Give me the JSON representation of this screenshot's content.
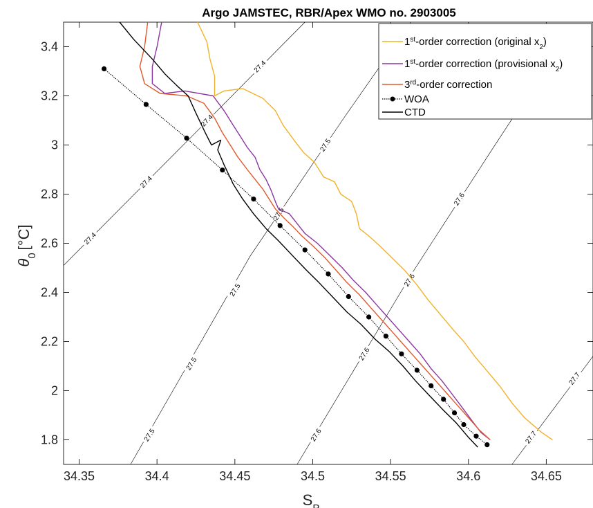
{
  "chart_data": {
    "type": "line",
    "title": "Argo JAMSTEC, RBR/Apex WMO no. 2903005",
    "xlabel": {
      "main": "S",
      "sub": "P"
    },
    "ylabel": {
      "theta": "θ",
      "sub": "0",
      "unit": "[°C]"
    },
    "xlim": [
      34.34,
      34.68
    ],
    "ylim": [
      1.7,
      3.5
    ],
    "xticks": [
      34.35,
      34.4,
      34.45,
      34.5,
      34.55,
      34.6,
      34.65
    ],
    "xtick_labels": [
      "34.35",
      "34.4",
      "34.45",
      "34.5",
      "34.55",
      "34.6",
      "34.65"
    ],
    "yticks": [
      1.8,
      2.0,
      2.2,
      2.4,
      2.6,
      2.8,
      3.0,
      3.2,
      3.4
    ],
    "ytick_labels": [
      "1.8",
      "2",
      "2.2",
      "2.4",
      "2.6",
      "2.8",
      "3",
      "3.2",
      "3.4"
    ],
    "legend": {
      "position": "top-right",
      "entries": [
        {
          "pre": "1",
          "sup": "st",
          "mid": "-order correction (original x",
          "sub": "2",
          "post": ")"
        },
        {
          "pre": "1",
          "sup": "st",
          "mid": "-order correction (provisional x",
          "sub": "2",
          "post": ")"
        },
        {
          "pre": "3",
          "sup": "rd",
          "mid": "-order correction",
          "sub": "",
          "post": ""
        },
        {
          "pre": "WOA",
          "sup": "",
          "mid": "",
          "sub": "",
          "post": ""
        },
        {
          "pre": "CTD",
          "sup": "",
          "mid": "",
          "sub": "",
          "post": ""
        }
      ]
    },
    "contours": [
      {
        "label": "27.4",
        "color": "#000000",
        "points": [
          [
            34.34,
            2.51
          ],
          [
            34.42,
            3.02
          ],
          [
            34.495,
            3.5
          ]
        ],
        "label_positions": [
          [
            34.357,
            2.62
          ],
          [
            34.393,
            2.85
          ],
          [
            34.432,
            3.1
          ],
          [
            34.466,
            3.32
          ]
        ]
      },
      {
        "label": "27.5",
        "color": "#000000",
        "points": [
          [
            34.383,
            1.7
          ],
          [
            34.46,
            2.55
          ],
          [
            34.52,
            3.11
          ],
          [
            34.563,
            3.5
          ]
        ],
        "label_positions": [
          [
            34.395,
            1.82
          ],
          [
            34.422,
            2.11
          ],
          [
            34.45,
            2.41
          ],
          [
            34.478,
            2.72
          ],
          [
            34.508,
            3.0
          ]
        ]
      },
      {
        "label": "27.6",
        "color": "#000000",
        "points": [
          [
            34.49,
            1.7
          ],
          [
            34.565,
            2.49
          ],
          [
            34.615,
            2.98
          ],
          [
            34.645,
            3.27
          ]
        ],
        "label_positions": [
          [
            34.502,
            1.82
          ],
          [
            34.533,
            2.15
          ],
          [
            34.562,
            2.45
          ],
          [
            34.594,
            2.78
          ],
          [
            34.633,
            3.16
          ]
        ]
      },
      {
        "label": "27.7",
        "color": "#000000",
        "points": [
          [
            34.628,
            1.7
          ],
          [
            34.68,
            2.14
          ]
        ],
        "label_positions": [
          [
            34.64,
            1.81
          ],
          [
            34.668,
            2.05
          ]
        ]
      }
    ],
    "series": [
      {
        "name": "1st-order correction (original x2)",
        "color": "#F0B22A",
        "style": "solid",
        "points": [
          [
            34.654,
            1.8
          ],
          [
            34.647,
            1.83
          ],
          [
            34.636,
            1.89
          ],
          [
            34.628,
            1.95
          ],
          [
            34.62,
            2.02
          ],
          [
            34.612,
            2.08
          ],
          [
            34.604,
            2.14
          ],
          [
            34.597,
            2.2
          ],
          [
            34.59,
            2.25
          ],
          [
            34.582,
            2.31
          ],
          [
            34.574,
            2.37
          ],
          [
            34.567,
            2.43
          ],
          [
            34.559,
            2.49
          ],
          [
            34.551,
            2.54
          ],
          [
            34.543,
            2.59
          ],
          [
            34.536,
            2.63
          ],
          [
            34.53,
            2.66
          ],
          [
            34.528,
            2.72
          ],
          [
            34.525,
            2.77
          ],
          [
            34.518,
            2.8
          ],
          [
            34.514,
            2.85
          ],
          [
            34.507,
            2.87
          ],
          [
            34.501,
            2.93
          ],
          [
            34.494,
            2.97
          ],
          [
            34.488,
            3.02
          ],
          [
            34.481,
            3.08
          ],
          [
            34.476,
            3.14
          ],
          [
            34.468,
            3.19
          ],
          [
            34.455,
            3.23
          ],
          [
            34.443,
            3.22
          ],
          [
            34.437,
            3.2
          ],
          [
            34.437,
            3.28
          ],
          [
            34.434,
            3.35
          ],
          [
            34.432,
            3.42
          ],
          [
            34.426,
            3.5
          ]
        ]
      },
      {
        "name": "1st-order correction (provisional x2)",
        "color": "#8B35A0",
        "style": "solid",
        "points": [
          [
            34.614,
            1.8
          ],
          [
            34.608,
            1.83
          ],
          [
            34.602,
            1.88
          ],
          [
            34.595,
            1.94
          ],
          [
            34.589,
            1.99
          ],
          [
            34.583,
            2.04
          ],
          [
            34.576,
            2.09
          ],
          [
            34.569,
            2.15
          ],
          [
            34.562,
            2.2
          ],
          [
            34.555,
            2.25
          ],
          [
            34.548,
            2.3
          ],
          [
            34.541,
            2.35
          ],
          [
            34.534,
            2.4
          ],
          [
            34.526,
            2.45
          ],
          [
            34.519,
            2.5
          ],
          [
            34.511,
            2.55
          ],
          [
            34.503,
            2.6
          ],
          [
            34.495,
            2.64
          ],
          [
            34.49,
            2.68
          ],
          [
            34.485,
            2.72
          ],
          [
            34.478,
            2.74
          ],
          [
            34.476,
            2.77
          ],
          [
            34.473,
            2.82
          ],
          [
            34.47,
            2.86
          ],
          [
            34.466,
            2.9
          ],
          [
            34.463,
            2.95
          ],
          [
            34.458,
            2.99
          ],
          [
            34.453,
            3.04
          ],
          [
            34.448,
            3.09
          ],
          [
            34.443,
            3.14
          ],
          [
            34.436,
            3.2
          ],
          [
            34.418,
            3.22
          ],
          [
            34.405,
            3.21
          ],
          [
            34.397,
            3.25
          ],
          [
            34.397,
            3.32
          ],
          [
            34.4,
            3.4
          ],
          [
            34.403,
            3.5
          ]
        ]
      },
      {
        "name": "3rd-order correction",
        "color": "#E0582A",
        "style": "solid",
        "points": [
          [
            34.614,
            1.8
          ],
          [
            34.607,
            1.84
          ],
          [
            34.6,
            1.89
          ],
          [
            34.593,
            1.94
          ],
          [
            34.586,
            1.99
          ],
          [
            34.579,
            2.04
          ],
          [
            34.572,
            2.09
          ],
          [
            34.565,
            2.14
          ],
          [
            34.558,
            2.19
          ],
          [
            34.551,
            2.24
          ],
          [
            34.544,
            2.29
          ],
          [
            34.537,
            2.34
          ],
          [
            34.53,
            2.39
          ],
          [
            34.522,
            2.44
          ],
          [
            34.515,
            2.49
          ],
          [
            34.508,
            2.54
          ],
          [
            34.5,
            2.59
          ],
          [
            34.493,
            2.63
          ],
          [
            34.487,
            2.67
          ],
          [
            34.482,
            2.7
          ],
          [
            34.476,
            2.74
          ],
          [
            34.472,
            2.78
          ],
          [
            34.468,
            2.82
          ],
          [
            34.463,
            2.86
          ],
          [
            34.458,
            2.9
          ],
          [
            34.452,
            2.95
          ],
          [
            34.447,
            3.0
          ],
          [
            34.442,
            3.05
          ],
          [
            34.437,
            3.11
          ],
          [
            34.43,
            3.17
          ],
          [
            34.419,
            3.2
          ],
          [
            34.402,
            3.21
          ],
          [
            34.392,
            3.25
          ],
          [
            34.389,
            3.32
          ],
          [
            34.392,
            3.4
          ],
          [
            34.394,
            3.5
          ]
        ]
      },
      {
        "name": "WOA",
        "color": "#000000",
        "style": "dotted-markers",
        "points": [
          [
            34.366,
            3.31
          ],
          [
            34.393,
            3.165
          ],
          [
            34.419,
            3.028
          ],
          [
            34.442,
            2.898
          ],
          [
            34.462,
            2.78
          ],
          [
            34.479,
            2.672
          ],
          [
            34.495,
            2.573
          ],
          [
            34.51,
            2.475
          ],
          [
            34.523,
            2.383
          ],
          [
            34.536,
            2.3
          ],
          [
            34.547,
            2.222
          ],
          [
            34.557,
            2.15
          ],
          [
            34.567,
            2.083
          ],
          [
            34.576,
            2.02
          ],
          [
            34.584,
            1.965
          ],
          [
            34.591,
            1.91
          ],
          [
            34.597,
            1.862
          ],
          [
            34.605,
            1.815
          ],
          [
            34.612,
            1.78
          ]
        ]
      },
      {
        "name": "CTD",
        "color": "#000000",
        "style": "solid",
        "points": [
          [
            34.606,
            1.77
          ],
          [
            34.6,
            1.81
          ],
          [
            34.592,
            1.87
          ],
          [
            34.584,
            1.92
          ],
          [
            34.575,
            1.98
          ],
          [
            34.566,
            2.04
          ],
          [
            34.558,
            2.1
          ],
          [
            34.549,
            2.16
          ],
          [
            34.54,
            2.21
          ],
          [
            34.531,
            2.27
          ],
          [
            34.522,
            2.32
          ],
          [
            34.513,
            2.38
          ],
          [
            34.504,
            2.44
          ],
          [
            34.496,
            2.49
          ],
          [
            34.487,
            2.55
          ],
          [
            34.478,
            2.61
          ],
          [
            34.47,
            2.66
          ],
          [
            34.462,
            2.72
          ],
          [
            34.455,
            2.78
          ],
          [
            34.449,
            2.84
          ],
          [
            34.443,
            2.92
          ],
          [
            34.439,
            2.98
          ],
          [
            34.441,
            3.02
          ],
          [
            34.435,
            3.0
          ],
          [
            34.431,
            3.05
          ],
          [
            34.425,
            3.13
          ],
          [
            34.42,
            3.2
          ],
          [
            34.413,
            3.24
          ],
          [
            34.405,
            3.29
          ],
          [
            34.397,
            3.35
          ],
          [
            34.385,
            3.43
          ],
          [
            34.376,
            3.5
          ]
        ]
      }
    ]
  }
}
